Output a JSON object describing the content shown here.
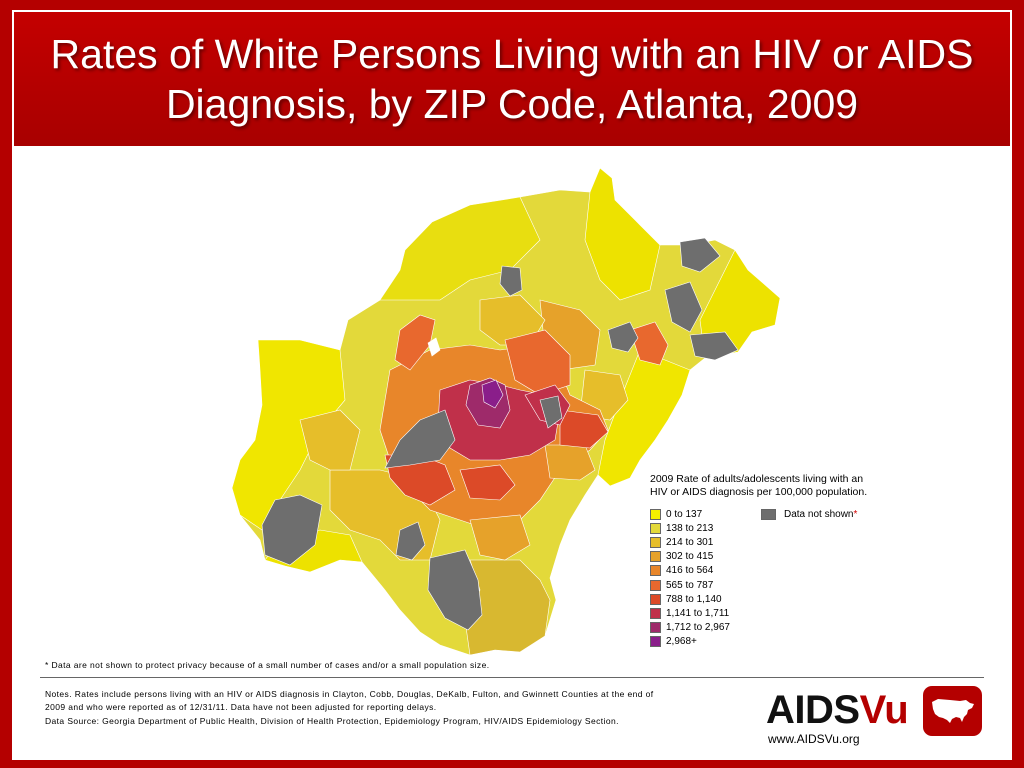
{
  "title": {
    "line1": "Rates of White Persons Living with an HIV or AIDS",
    "line2": "Diagnosis, by ZIP Code, Atlanta, 2009"
  },
  "legend": {
    "title_line1": "2009 Rate of adults/adolescents living with an",
    "title_line2": "HIV or AIDS diagnosis per 100,000 population.",
    "items": [
      {
        "label": "0 to 137",
        "color": "#f5f000"
      },
      {
        "label": "138 to 213",
        "color": "#e3d93a"
      },
      {
        "label": "214 to 301",
        "color": "#e6be2a"
      },
      {
        "label": "302 to 415",
        "color": "#e6a22a"
      },
      {
        "label": "416 to 564",
        "color": "#e8862a"
      },
      {
        "label": "565 to 787",
        "color": "#e8682e"
      },
      {
        "label": "788 to 1,140",
        "color": "#dc4a28"
      },
      {
        "label": "1,141 to 1,711",
        "color": "#c0304a"
      },
      {
        "label": "1,712 to 2,967",
        "color": "#9e2a6a"
      },
      {
        "label": "2,968+",
        "color": "#8a1e8a"
      }
    ],
    "not_shown": {
      "label": "Data not shown",
      "asterisk": "*",
      "color": "#6e6e6e"
    }
  },
  "footnote": "* Data are not shown to protect privacy because of a small number of cases and/or a small population size.",
  "notes": {
    "line1": "Notes. Rates include persons living with an HIV or AIDS diagnosis in Clayton, Cobb, Douglas, DeKalb, Fulton, and Gwinnett Counties at the end of",
    "line2": "2009 and who were reported as of 12/31/11. Data have not been adjusted for reporting delays.",
    "source": "Data Source: Georgia Department of Public Health, Division of Health Protection, Epidemiology Program, HIV/AIDS Epidemiology Section."
  },
  "logo": {
    "part1": "AIDS",
    "part2": "Vu",
    "url": "www.AIDSVu.org",
    "icon": "us-map-icon"
  }
}
